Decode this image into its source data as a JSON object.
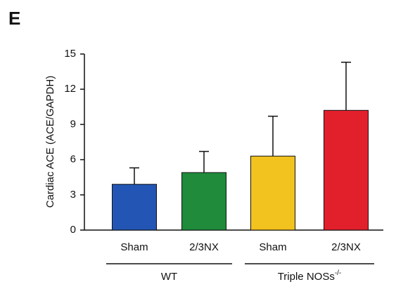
{
  "panel_label": "E",
  "chart_data": {
    "type": "bar",
    "ylabel": "Cardiac ACE (ACE/GAPDH)",
    "categories": [
      "Sham",
      "2/3NX",
      "Sham",
      "2/3NX"
    ],
    "values": [
      3.9,
      4.9,
      6.3,
      10.2
    ],
    "errors": [
      1.4,
      1.8,
      3.4,
      4.1
    ],
    "colors": [
      "#2356b4",
      "#1f8b3b",
      "#f2c21e",
      "#e2202c"
    ],
    "groups": [
      {
        "label": "WT",
        "span": [
          0,
          1
        ]
      },
      {
        "label": "Triple NOSs",
        "superscript": "-/-",
        "span": [
          2,
          3
        ]
      }
    ],
    "ylim": [
      0,
      15
    ],
    "yticks": [
      0,
      3,
      6,
      9,
      12,
      15
    ],
    "grid": false
  }
}
